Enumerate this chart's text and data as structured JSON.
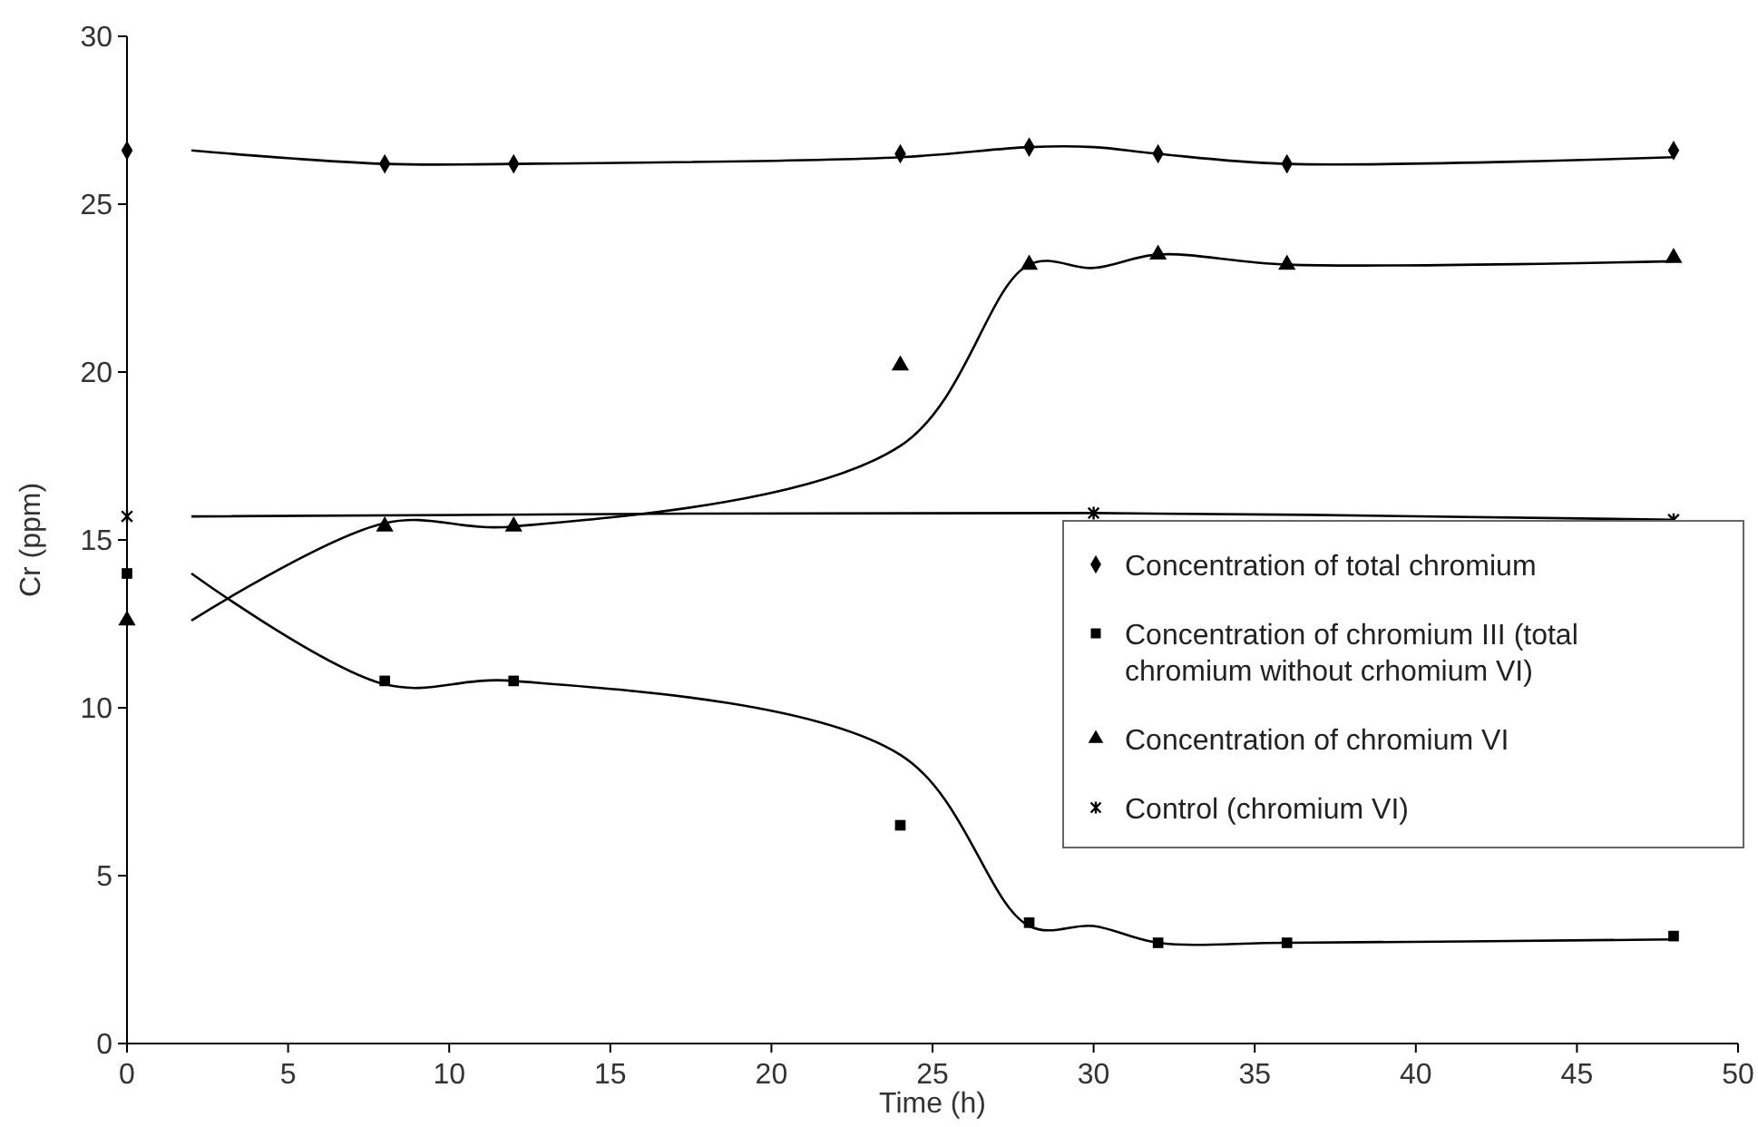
{
  "chart_data": {
    "type": "scatter",
    "xlabel": "Time (h)",
    "ylabel": "Cr (ppm)",
    "xlim": [
      0,
      50
    ],
    "xticks": [
      0,
      5,
      10,
      15,
      20,
      25,
      30,
      35,
      40,
      45,
      50
    ],
    "ylim": [
      0,
      30
    ],
    "yticks": [
      0,
      5,
      10,
      15,
      20,
      25,
      30
    ],
    "grid": false,
    "legend": "right",
    "series": [
      {
        "name": "Concentration of total chromium",
        "color": "#000000",
        "marker": "diamond",
        "x": [
          0,
          8,
          12,
          24,
          28,
          32,
          36,
          48
        ],
        "values": [
          26.6,
          26.2,
          26.2,
          26.5,
          26.7,
          26.5,
          26.2,
          26.6
        ]
      },
      {
        "name": "Concentration of chromium III (total chromium without crhomium VI)",
        "color": "#000000",
        "marker": "square",
        "x": [
          0,
          8,
          12,
          24,
          28,
          32,
          36,
          48
        ],
        "values": [
          14.0,
          10.8,
          10.8,
          6.5,
          3.6,
          3.0,
          3.0,
          3.2
        ]
      },
      {
        "name": "Concentration of chromium VI",
        "color": "#000000",
        "marker": "triangle",
        "x": [
          0,
          8,
          12,
          24,
          28,
          32,
          36,
          48
        ],
        "values": [
          12.6,
          15.4,
          15.4,
          20.2,
          23.2,
          23.5,
          23.2,
          23.4
        ]
      },
      {
        "name": "Control (chromium VI)",
        "color": "#000000",
        "marker": "cross",
        "x": [
          0,
          30,
          48
        ],
        "values": [
          15.7,
          15.8,
          15.6
        ]
      },
      {
        "type": "line",
        "color": "#000000",
        "marker": "none",
        "x": [
          2,
          8,
          12,
          24,
          28,
          30,
          32,
          36,
          48
        ],
        "values": [
          26.6,
          26.2,
          26.2,
          26.4,
          26.7,
          26.7,
          26.5,
          26.2,
          26.4
        ]
      },
      {
        "type": "line",
        "color": "#000000",
        "marker": "none",
        "x": [
          2,
          8,
          12,
          24,
          28,
          30,
          32,
          36,
          48
        ],
        "values": [
          14.0,
          10.7,
          10.8,
          8.6,
          3.5,
          3.5,
          3.0,
          3.0,
          3.1
        ]
      },
      {
        "type": "line",
        "color": "#000000",
        "marker": "none",
        "x": [
          2,
          8,
          12,
          24,
          28,
          30,
          32,
          36,
          48
        ],
        "values": [
          12.6,
          15.5,
          15.4,
          17.8,
          23.2,
          23.1,
          23.5,
          23.2,
          23.3
        ]
      },
      {
        "type": "line",
        "color": "#000000",
        "marker": "none",
        "x": [
          2,
          30,
          48
        ],
        "values": [
          15.7,
          15.8,
          15.6
        ]
      }
    ]
  }
}
